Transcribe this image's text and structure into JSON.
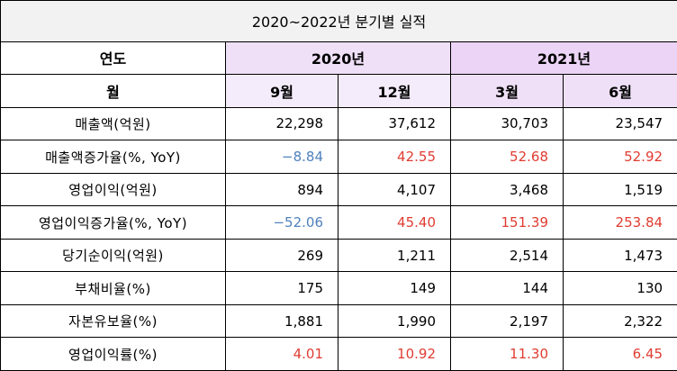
{
  "title": "2020~2022년 분기별 실적",
  "header": {
    "year_label": "연도",
    "month_label": "월",
    "years": [
      {
        "label": "2020년"
      },
      {
        "label": "2021년"
      }
    ],
    "quarters": [
      "9월",
      "12월",
      "3월",
      "6월"
    ]
  },
  "rows": [
    {
      "label": "매출액(억원)",
      "values": [
        "22,298",
        "37,612",
        "30,703",
        "23,547"
      ],
      "colors": [
        "black",
        "black",
        "black",
        "black"
      ]
    },
    {
      "label": "매출액증가율(%, YoY)",
      "values": [
        "−8.84",
        "42.55",
        "52.68",
        "52.92"
      ],
      "colors": [
        "blue",
        "red",
        "red",
        "red"
      ]
    },
    {
      "label": "영업이익(억원)",
      "values": [
        "894",
        "4,107",
        "3,468",
        "1,519"
      ],
      "colors": [
        "black",
        "black",
        "black",
        "black"
      ]
    },
    {
      "label": "영업이익증가율(%, YoY)",
      "values": [
        "−52.06",
        "45.40",
        "151.39",
        "253.84"
      ],
      "colors": [
        "blue",
        "red",
        "red",
        "red"
      ]
    },
    {
      "label": "당기순이익(억원)",
      "values": [
        "269",
        "1,211",
        "2,514",
        "1,473"
      ],
      "colors": [
        "black",
        "black",
        "black",
        "black"
      ]
    },
    {
      "label": "부채비율(%)",
      "values": [
        "175",
        "149",
        "144",
        "130"
      ],
      "colors": [
        "black",
        "black",
        "black",
        "black"
      ]
    },
    {
      "label": "자본유보율(%)",
      "values": [
        "1,881",
        "1,990",
        "2,197",
        "2,322"
      ],
      "colors": [
        "black",
        "black",
        "black",
        "black"
      ]
    },
    {
      "label": "영업이익률(%)",
      "values": [
        "4.01",
        "10.92",
        "11.30",
        "6.45"
      ],
      "colors": [
        "red",
        "red",
        "red",
        "red"
      ]
    }
  ],
  "palette": {
    "negative": "#4f81bd",
    "positive": "#e03c31",
    "year_2020_bg": "#efe0f7",
    "year_2021_bg": "#ebd4f5"
  }
}
